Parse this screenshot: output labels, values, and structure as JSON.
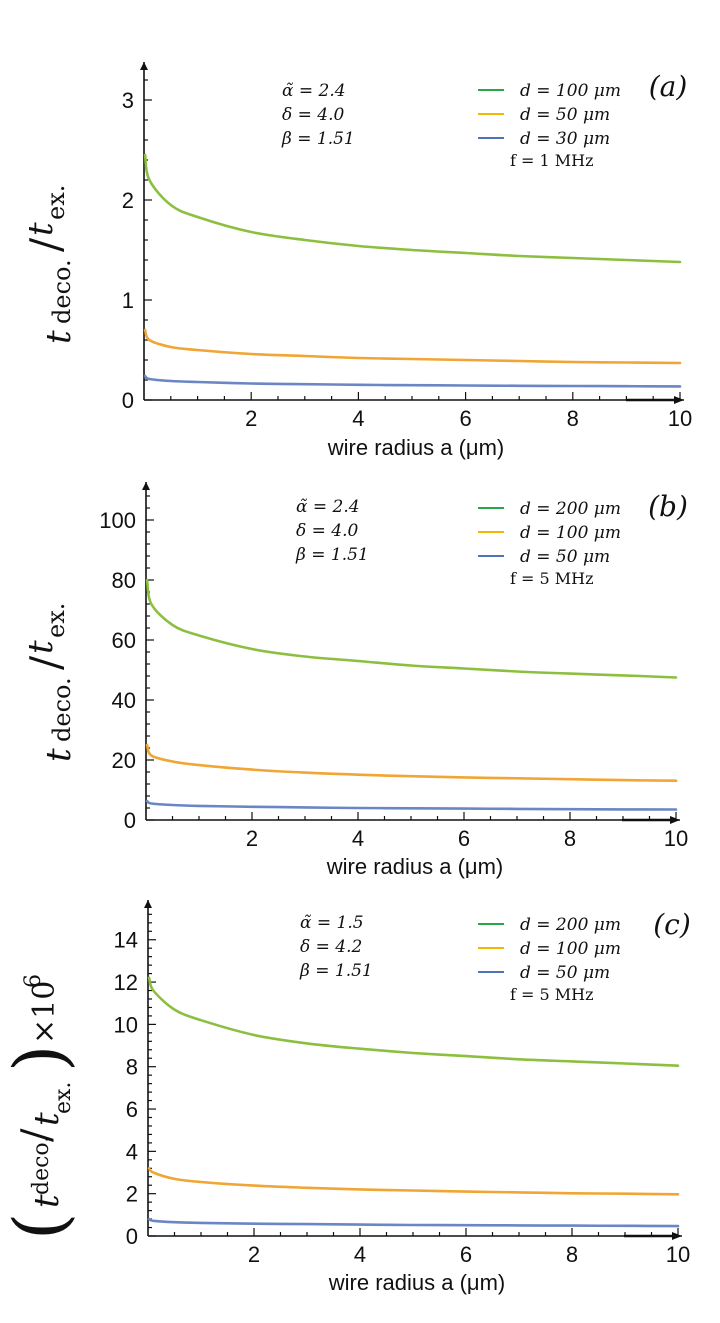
{
  "chart_data": [
    {
      "type": "line",
      "panel_label": "(a)",
      "xlabel": "wire radius a (μm)",
      "ylabel": "t_deco./t_ex.",
      "ylabel_main": "t",
      "ylabel_sub1": "deco.",
      "ylabel_slash": "/",
      "ylabel_t2": "t",
      "ylabel_sub2": "ex.",
      "xlim": [
        0,
        10
      ],
      "ylim": [
        0,
        3.3
      ],
      "xticks": [
        2,
        4,
        6,
        8,
        10
      ],
      "yticks": [
        0,
        1,
        2,
        3
      ],
      "params": [
        "α̃ = 2.4",
        "δ = 4.0",
        "β = 1.51"
      ],
      "frequency": "f = 1 MHz",
      "grid": false,
      "legend_position": "top-right",
      "colors": {
        "d1": "#8cbf3f",
        "d2": "#f0a534",
        "d3": "#6b86c4",
        "legend_d1": "#2ca44a",
        "legend_d2": "#f5b800",
        "legend_d3": "#4f73b8"
      },
      "series": [
        {
          "name": "d = 100 μm",
          "x": [
            0.02,
            0.1,
            0.5,
            1,
            2,
            3,
            4,
            5,
            6,
            7,
            8,
            9,
            10
          ],
          "values": [
            2.45,
            2.2,
            1.95,
            1.83,
            1.68,
            1.6,
            1.54,
            1.5,
            1.47,
            1.44,
            1.42,
            1.4,
            1.38
          ]
        },
        {
          "name": "d = 50 μm",
          "x": [
            0.02,
            0.1,
            0.5,
            1,
            2,
            3,
            4,
            5,
            6,
            7,
            8,
            9,
            10
          ],
          "values": [
            0.7,
            0.6,
            0.53,
            0.5,
            0.46,
            0.44,
            0.42,
            0.41,
            0.4,
            0.39,
            0.38,
            0.375,
            0.37
          ]
        },
        {
          "name": "d = 30 μm",
          "x": [
            0.02,
            0.1,
            0.5,
            1,
            2,
            3,
            4,
            5,
            6,
            7,
            8,
            9,
            10
          ],
          "values": [
            0.24,
            0.21,
            0.19,
            0.18,
            0.165,
            0.158,
            0.152,
            0.148,
            0.145,
            0.142,
            0.14,
            0.138,
            0.136
          ]
        }
      ]
    },
    {
      "type": "line",
      "panel_label": "(b)",
      "xlabel": "wire radius a (μm)",
      "ylabel": "t_deco./t_ex.",
      "ylabel_main": "t",
      "ylabel_sub1": "deco.",
      "ylabel_slash": "/",
      "ylabel_t2": "t",
      "ylabel_sub2": "ex.",
      "xlim": [
        0,
        10
      ],
      "ylim": [
        0,
        110
      ],
      "xticks": [
        2,
        4,
        6,
        8,
        10
      ],
      "yticks": [
        0,
        20,
        40,
        60,
        80,
        100
      ],
      "params": [
        "α̃ = 2.4",
        "δ = 4.0",
        "β = 1.51"
      ],
      "frequency": "f = 5 MHz",
      "grid": false,
      "legend_position": "top-right",
      "colors": {
        "d1": "#8cbf3f",
        "d2": "#f0a534",
        "d3": "#6b86c4",
        "legend_d1": "#2ca44a",
        "legend_d2": "#f5b800",
        "legend_d3": "#4f73b8"
      },
      "series": [
        {
          "name": "d = 200 μm",
          "x": [
            0.02,
            0.1,
            0.5,
            1,
            2,
            3,
            4,
            5,
            6,
            7,
            8,
            9,
            10
          ],
          "values": [
            80,
            72,
            65,
            61.5,
            57,
            54.5,
            53,
            51.5,
            50.5,
            49.5,
            48.8,
            48.2,
            47.5
          ]
        },
        {
          "name": "d = 100 μm",
          "x": [
            0.02,
            0.1,
            0.5,
            1,
            2,
            3,
            4,
            5,
            6,
            7,
            8,
            9,
            10
          ],
          "values": [
            25,
            21.5,
            19.5,
            18.3,
            16.8,
            15.8,
            15.1,
            14.6,
            14.2,
            13.9,
            13.6,
            13.3,
            13.1
          ]
        },
        {
          "name": "d = 50 μm",
          "x": [
            0.02,
            0.1,
            0.5,
            1,
            2,
            3,
            4,
            5,
            6,
            7,
            8,
            9,
            10
          ],
          "values": [
            6.3,
            5.5,
            5.0,
            4.7,
            4.4,
            4.2,
            4.0,
            3.9,
            3.8,
            3.7,
            3.6,
            3.55,
            3.5
          ]
        }
      ]
    },
    {
      "type": "line",
      "panel_label": "(c)",
      "xlabel": "wire radius a (μm)",
      "ylabel": "(t_deco./t_ex.)×10^6",
      "ylabel_main": "t",
      "ylabel_sub1": "deco.",
      "ylabel_slash": "/",
      "ylabel_t2": "t",
      "ylabel_sub2": "ex.",
      "ylabel_paren_open": "(",
      "ylabel_paren_close": ")",
      "ylabel_mult": "×10",
      "ylabel_exp": "6",
      "xlim": [
        0,
        10
      ],
      "ylim": [
        0,
        15.5
      ],
      "xticks": [
        2,
        4,
        6,
        8,
        10
      ],
      "yticks": [
        0,
        2,
        4,
        6,
        8,
        10,
        12,
        14
      ],
      "params": [
        "α̃ = 1.5",
        "δ = 4.2",
        "β = 1.51"
      ],
      "frequency": "f = 5 MHz",
      "grid": false,
      "legend_position": "top-right",
      "colors": {
        "d1": "#8cbf3f",
        "d2": "#f0a534",
        "d3": "#6b86c4",
        "legend_d1": "#2ca44a",
        "legend_d2": "#f5b800",
        "legend_d3": "#4f73b8"
      },
      "series": [
        {
          "name": "d = 200 μm",
          "x": [
            0.02,
            0.1,
            0.5,
            1,
            2,
            3,
            4,
            5,
            6,
            7,
            8,
            9,
            10
          ],
          "values": [
            12.2,
            11.6,
            10.7,
            10.2,
            9.5,
            9.1,
            8.85,
            8.65,
            8.5,
            8.35,
            8.25,
            8.15,
            8.05
          ]
        },
        {
          "name": "d = 100 μm",
          "x": [
            0.02,
            0.1,
            0.5,
            1,
            2,
            3,
            4,
            5,
            6,
            7,
            8,
            9,
            10
          ],
          "values": [
            3.2,
            3.0,
            2.7,
            2.55,
            2.38,
            2.28,
            2.2,
            2.15,
            2.1,
            2.06,
            2.02,
            2.0,
            1.97
          ]
        },
        {
          "name": "d = 50 μm",
          "x": [
            0.02,
            0.1,
            0.5,
            1,
            2,
            3,
            4,
            5,
            6,
            7,
            8,
            9,
            10
          ],
          "values": [
            0.8,
            0.72,
            0.65,
            0.62,
            0.58,
            0.56,
            0.54,
            0.52,
            0.51,
            0.5,
            0.49,
            0.48,
            0.47
          ]
        }
      ]
    }
  ]
}
